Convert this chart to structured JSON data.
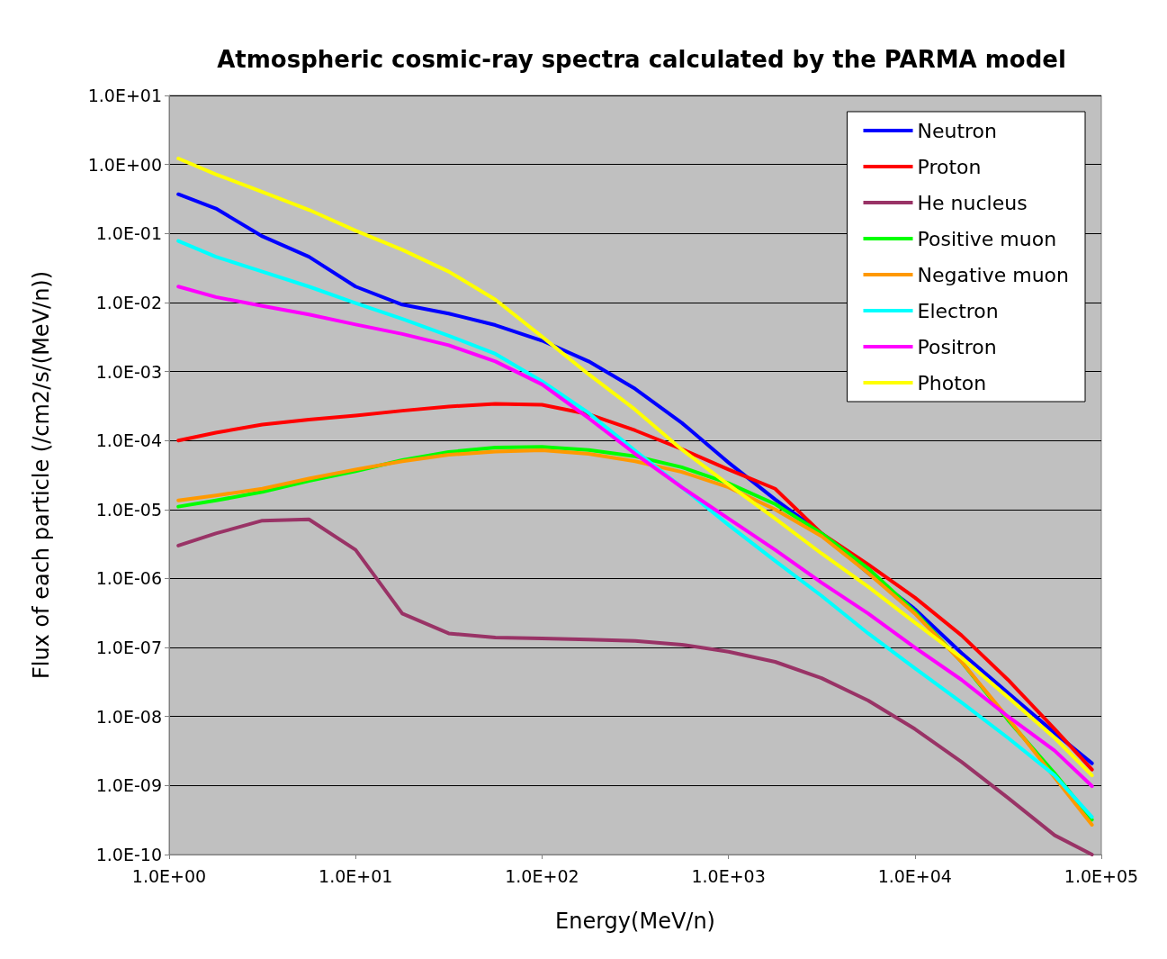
{
  "chart_data": {
    "type": "line",
    "title": "Atmospheric cosmic-ray spectra calculated by the PARMA model",
    "xlabel": "Energy(MeV/n)",
    "ylabel": "Flux of each particle (/cm2/s/(MeV/n))",
    "log": "xy",
    "grid": "y",
    "legend": "top right",
    "marker": "none",
    "line_style": "solid",
    "xlim": [
      1,
      100000
    ],
    "ylim": [
      1e-10,
      10
    ],
    "xticks": [
      {
        "value": 1,
        "label": "1.0E+00"
      },
      {
        "value": 10,
        "label": "1.0E+01"
      },
      {
        "value": 100,
        "label": "1.0E+02"
      },
      {
        "value": 1000,
        "label": "1.0E+03"
      },
      {
        "value": 10000,
        "label": "1.0E+04"
      },
      {
        "value": 100000,
        "label": "1.0E+05"
      }
    ],
    "yticks": [
      {
        "value": 1e-10,
        "label": "1.0E-10"
      },
      {
        "value": 1e-09,
        "label": "1.0E-09"
      },
      {
        "value": 1e-08,
        "label": "1.0E-08"
      },
      {
        "value": 1e-07,
        "label": "1.0E-07"
      },
      {
        "value": 1e-06,
        "label": "1.0E-06"
      },
      {
        "value": 1e-05,
        "label": "1.0E-05"
      },
      {
        "value": 0.0001,
        "label": "1.0E-04"
      },
      {
        "value": 0.001,
        "label": "1.0E-03"
      },
      {
        "value": 0.01,
        "label": "1.0E-02"
      },
      {
        "value": 0.1,
        "label": "1.0E-01"
      },
      {
        "value": 1,
        "label": "1.0E+00"
      },
      {
        "value": 10,
        "label": "1.0E+01"
      }
    ],
    "x": [
      1.12,
      1.78,
      3.16,
      5.62,
      10,
      17.8,
      31.6,
      56.2,
      100,
      178,
      316,
      562,
      1000,
      1780,
      3160,
      5620,
      10000,
      17800,
      31600,
      56200,
      89100
    ],
    "series": [
      {
        "name": "Neutron",
        "color": "#0000ff",
        "values": [
          0.37,
          0.23,
          0.091,
          0.046,
          0.017,
          0.0093,
          0.0069,
          0.0047,
          0.0028,
          0.0014,
          0.00056,
          0.00018,
          4.8e-05,
          1.4e-05,
          4.5e-06,
          1.2e-06,
          3.6e-07,
          8.3e-08,
          2.2e-08,
          5.8e-09,
          2.1e-09
        ]
      },
      {
        "name": "Proton",
        "color": "#ff0000",
        "values": [
          0.0001,
          0.00013,
          0.00017,
          0.0002,
          0.00023,
          0.00027,
          0.00031,
          0.00034,
          0.00033,
          0.00024,
          0.00014,
          7.5e-05,
          3.8e-05,
          2e-05,
          4.5e-06,
          1.6e-06,
          5.3e-07,
          1.5e-07,
          3.4e-08,
          6.6e-09,
          1.7e-09
        ]
      },
      {
        "name": "He nucleus",
        "color": "#993366",
        "values": [
          3e-06,
          4.5e-06,
          6.9e-06,
          7.2e-06,
          2.6e-06,
          3.1e-07,
          1.6e-07,
          1.4e-07,
          1.35e-07,
          1.3e-07,
          1.25e-07,
          1.1e-07,
          8.7e-08,
          6.2e-08,
          3.6e-08,
          1.7e-08,
          6.6e-09,
          2.2e-09,
          6.6e-10,
          1.9e-10,
          1e-10
        ]
      },
      {
        "name": "Positive muon",
        "color": "#00ff00",
        "values": [
          1.1e-05,
          1.35e-05,
          1.8e-05,
          2.6e-05,
          3.6e-05,
          5.2e-05,
          6.8e-05,
          7.9e-05,
          8.1e-05,
          7.3e-05,
          5.9e-05,
          4.1e-05,
          2.4e-05,
          1.2e-05,
          4.5e-06,
          1.4e-06,
          3.3e-07,
          6.2e-08,
          8.9e-09,
          1.5e-09,
          3.2e-10
        ]
      },
      {
        "name": "Negative muon",
        "color": "#ff9900",
        "values": [
          1.35e-05,
          1.6e-05,
          2e-05,
          2.8e-05,
          3.8e-05,
          5e-05,
          6.2e-05,
          6.9e-05,
          7.2e-05,
          6.4e-05,
          5e-05,
          3.5e-05,
          2.1e-05,
          1e-05,
          4.1e-06,
          1.2e-06,
          3.1e-07,
          6.2e-08,
          9.5e-09,
          1.3e-09,
          2.7e-10
        ]
      },
      {
        "name": "Electron",
        "color": "#00ffff",
        "values": [
          0.078,
          0.046,
          0.028,
          0.017,
          0.0098,
          0.0058,
          0.0033,
          0.0018,
          0.00072,
          0.00025,
          7.1e-05,
          2.1e-05,
          6e-06,
          1.8e-06,
          5.6e-07,
          1.6e-07,
          5e-08,
          1.6e-08,
          4.9e-09,
          1.4e-09,
          3.5e-10
        ]
      },
      {
        "name": "Positron",
        "color": "#ff00ff",
        "values": [
          0.017,
          0.012,
          0.0089,
          0.0067,
          0.0048,
          0.0035,
          0.0024,
          0.0014,
          0.00065,
          0.00021,
          6.4e-05,
          2.1e-05,
          7.4e-06,
          2.6e-06,
          8.7e-07,
          3.1e-07,
          1e-07,
          3.4e-08,
          1e-08,
          3.2e-09,
          9.8e-10
        ]
      },
      {
        "name": "Photon",
        "color": "#ffff00",
        "values": [
          1.22,
          0.72,
          0.4,
          0.22,
          0.11,
          0.058,
          0.028,
          0.011,
          0.0032,
          0.00091,
          0.00028,
          7.4e-05,
          2.3e-05,
          7.4e-06,
          2.3e-06,
          7.6e-07,
          2.3e-07,
          7.1e-08,
          1.9e-08,
          4.9e-09,
          1.4e-09
        ]
      }
    ]
  }
}
